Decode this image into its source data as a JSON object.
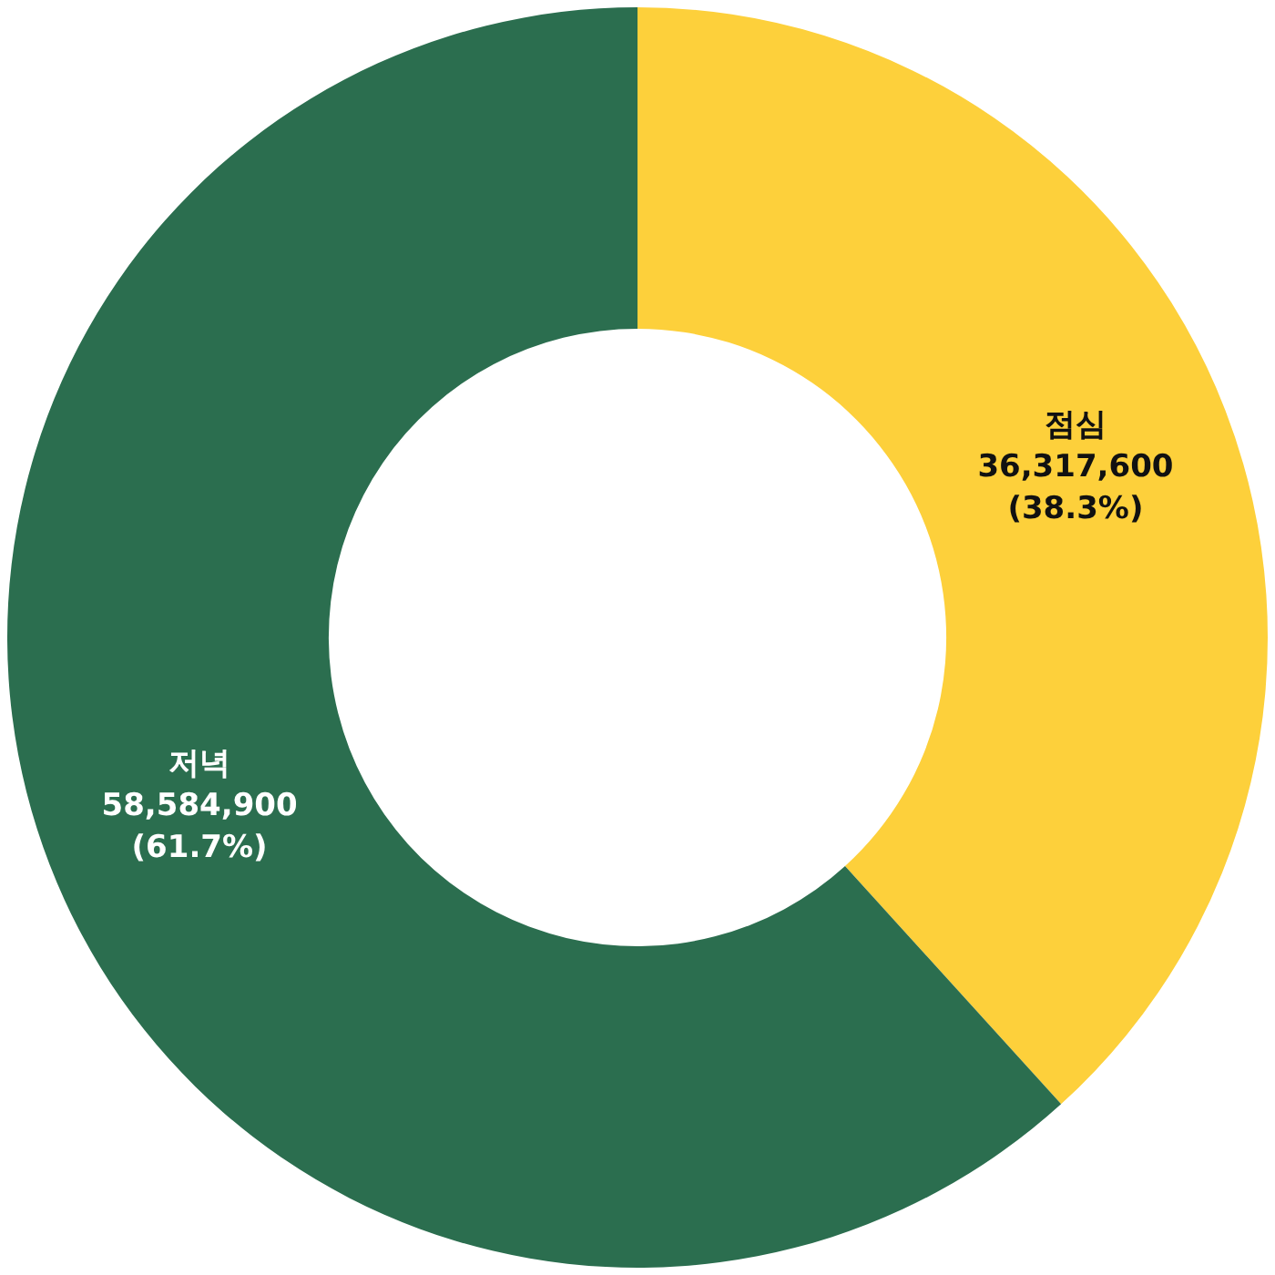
{
  "chart_data": {
    "type": "donut",
    "categories": [
      "점심",
      "저녁"
    ],
    "values": [
      36317600,
      58584900
    ],
    "colors": [
      "#fdd03b",
      "#2b6e4f"
    ],
    "value_labels": [
      "36,317,600\n(38.3%)",
      "58,584,900\n(61.7%)"
    ],
    "legend": false
  }
}
